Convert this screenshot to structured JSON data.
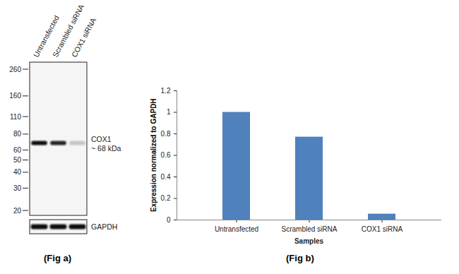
{
  "chart_data": {
    "type": "bar",
    "categories": [
      "Untransfected",
      "Scrambled siRNA",
      "COX1 siRNA"
    ],
    "values": [
      1.0,
      0.77,
      0.055
    ],
    "color": "#4f81bd",
    "ylim": [
      0,
      1.2
    ],
    "yticks": [
      0,
      0.2,
      0.4,
      0.6,
      0.8,
      1,
      1.2
    ],
    "y_label": "Expression  normalized to GAPDH",
    "x_label": "Samples",
    "caption": "(Fig b)",
    "grid": false
  },
  "blot": {
    "lanes": [
      "Untransfected",
      "Scrambled siRNA",
      "COX1 siRNA"
    ],
    "markers": [
      260,
      160,
      110,
      80,
      60,
      50,
      40,
      30,
      20
    ],
    "band": {
      "label": "COX1",
      "size_label": "~ 68 kDa",
      "kda": 68,
      "intensity": [
        1,
        0.9,
        0.2
      ]
    },
    "loading_control": {
      "label": "GAPDH",
      "intensity": [
        1,
        1,
        1
      ]
    },
    "caption": "(Fig a)"
  }
}
